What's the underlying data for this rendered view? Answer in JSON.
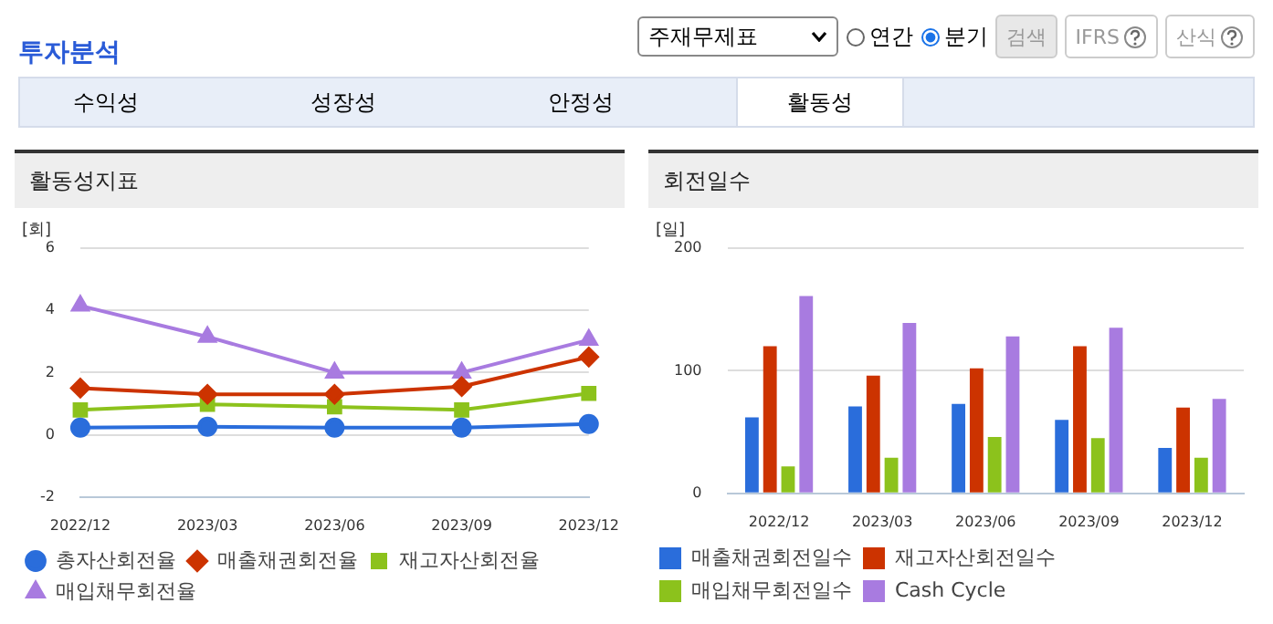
{
  "chart_data": [
    {
      "type": "other",
      "title": "투자분석",
      "annotations": [
        "주재무제표",
        "연간",
        "분기",
        "검색",
        "IFRS",
        "산식",
        "수익성",
        "성장성",
        "안정성",
        "활동성"
      ]
    },
    {
      "type": "line",
      "title": "활동성지표",
      "ylabel": "[회]",
      "categories": [
        "2022/12",
        "2023/03",
        "2023/06",
        "2023/09",
        "2023/12"
      ],
      "ylim": [
        -2,
        6
      ],
      "yticks": [
        -2,
        0,
        2,
        4,
        6
      ],
      "grid": "y",
      "legend": "bottom",
      "series": [
        {
          "name": "총자산회전율",
          "color": "#2a6ddb",
          "marker": "circle",
          "values": [
            0.23,
            0.26,
            0.23,
            0.23,
            0.35
          ]
        },
        {
          "name": "매출채권회전율",
          "color": "#cc3300",
          "marker": "diamond",
          "values": [
            1.5,
            1.3,
            1.3,
            1.55,
            2.5
          ]
        },
        {
          "name": "재고자산회전율",
          "color": "#8cc21c",
          "marker": "square",
          "values": [
            0.8,
            0.98,
            0.9,
            0.8,
            1.33
          ]
        },
        {
          "name": "매입채무회전율",
          "color": "#a87be0",
          "marker": "triangle",
          "values": [
            4.15,
            3.15,
            2.0,
            2.0,
            3.05
          ]
        }
      ]
    },
    {
      "type": "bar",
      "title": "회전일수",
      "ylabel": "[일]",
      "categories": [
        "2022/12",
        "2023/03",
        "2023/06",
        "2023/09",
        "2023/12"
      ],
      "ylim": [
        0,
        200
      ],
      "yticks": [
        0,
        100,
        200
      ],
      "grid": "y",
      "legend": "bottom",
      "series": [
        {
          "name": "매출채권회전일수",
          "color": "#2a6ddb",
          "values": [
            62,
            71,
            73,
            60,
            37
          ]
        },
        {
          "name": "재고자산회전일수",
          "color": "#cc3300",
          "values": [
            120,
            96,
            102,
            120,
            70
          ]
        },
        {
          "name": "매입채무회전일수",
          "color": "#8cc21c",
          "values": [
            22,
            29,
            46,
            45,
            29
          ]
        },
        {
          "name": "Cash Cycle",
          "color": "#a87be0",
          "values": [
            161,
            139,
            128,
            135,
            77
          ]
        }
      ]
    }
  ]
}
